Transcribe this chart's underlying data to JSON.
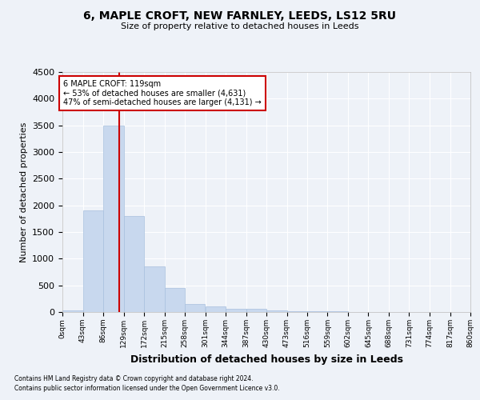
{
  "title": "6, MAPLE CROFT, NEW FARNLEY, LEEDS, LS12 5RU",
  "subtitle": "Size of property relative to detached houses in Leeds",
  "xlabel": "Distribution of detached houses by size in Leeds",
  "ylabel": "Number of detached properties",
  "bin_edges": [
    0,
    43,
    86,
    129,
    172,
    215,
    258,
    301,
    344,
    387,
    430,
    473,
    516,
    559,
    602,
    645,
    688,
    731,
    774,
    817,
    860
  ],
  "bar_heights": [
    30,
    1900,
    3500,
    1800,
    850,
    450,
    150,
    100,
    65,
    55,
    35,
    20,
    12,
    8,
    5,
    4,
    3,
    2,
    1,
    1
  ],
  "bar_color": "#c8d8ee",
  "bar_edgecolor": "#a8c0de",
  "vline_x": 119,
  "vline_color": "#cc0000",
  "annotation_line1": "6 MAPLE CROFT: 119sqm",
  "annotation_line2": "← 53% of detached houses are smaller (4,631)",
  "annotation_line3": "47% of semi-detached houses are larger (4,131) →",
  "annotation_box_edgecolor": "#cc0000",
  "ylim": [
    0,
    4500
  ],
  "background_color": "#eef2f8",
  "grid_color": "#ffffff",
  "footer_line1": "Contains HM Land Registry data © Crown copyright and database right 2024.",
  "footer_line2": "Contains public sector information licensed under the Open Government Licence v3.0."
}
